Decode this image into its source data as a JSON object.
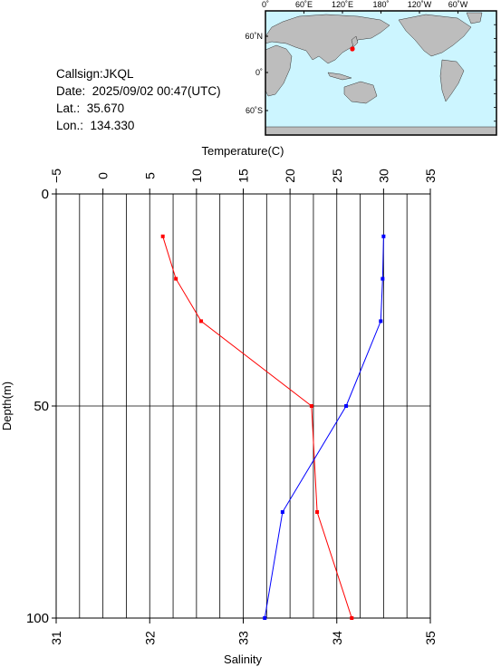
{
  "station": {
    "callsign_line": "Callsign:JKQL",
    "date_label": "Date:",
    "date_value": "2025/09/02 00:47(UTC)",
    "lat_label": "Lat.:",
    "lat_value": "35.670",
    "lon_label": "Lon.:",
    "lon_value": "134.330"
  },
  "map": {
    "top_ticks": [
      "0˚",
      "60˚E",
      "120˚E",
      "180˚",
      "120˚W",
      "60˚W"
    ],
    "left_ticks": [
      "60˚N",
      "0˚",
      "60˚S"
    ],
    "ocean_color": "#ccf5ff",
    "land_color": "#bdbdbd",
    "marker_color": "#ff0000"
  },
  "chart_data": {
    "type": "line",
    "ylabel": "Depth(m)",
    "ylim": [
      0,
      100
    ],
    "y_reversed": true,
    "y_ticks": [
      "0",
      "50",
      "100"
    ],
    "top_axis": {
      "label": "Temperature(C)",
      "range": [
        -5,
        35
      ],
      "ticks": [
        "−5",
        "0",
        "5",
        "10",
        "15",
        "20",
        "25",
        "30",
        "35"
      ]
    },
    "bottom_axis": {
      "label": "Salinity",
      "range": [
        31,
        35
      ],
      "ticks": [
        "31",
        "32",
        "33",
        "34",
        "35"
      ]
    },
    "series": [
      {
        "axis": "top",
        "color": "#ff0000",
        "points": [
          {
            "x": 6.4,
            "depth": 10
          },
          {
            "x": 7.8,
            "depth": 20
          },
          {
            "x": 10.5,
            "depth": 30
          },
          {
            "x": 22.3,
            "depth": 50
          },
          {
            "x": 22.9,
            "depth": 75
          },
          {
            "x": 26.6,
            "depth": 100
          }
        ]
      },
      {
        "axis": "bottom",
        "color": "#0000ff",
        "points": [
          {
            "x": 34.5,
            "depth": 10
          },
          {
            "x": 34.49,
            "depth": 20
          },
          {
            "x": 34.47,
            "depth": 30
          },
          {
            "x": 34.1,
            "depth": 50
          },
          {
            "x": 33.42,
            "depth": 75
          },
          {
            "x": 33.23,
            "depth": 100
          }
        ]
      }
    ]
  }
}
